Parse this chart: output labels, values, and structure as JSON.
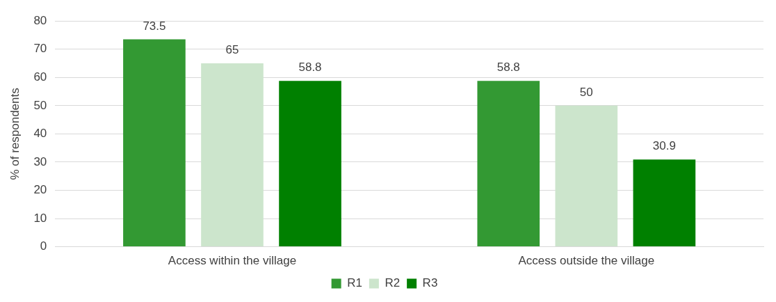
{
  "chart_data": {
    "type": "bar",
    "ylabel": "% of respondents",
    "categories": [
      "Access within the village",
      "Access outside the village"
    ],
    "series": [
      {
        "name": "R1",
        "color": "#339933",
        "values": [
          73.5,
          58.8
        ]
      },
      {
        "name": "R2",
        "color": "#cce5cc",
        "values": [
          65,
          50
        ]
      },
      {
        "name": "R3",
        "color": "#008000",
        "values": [
          58.8,
          30.9
        ]
      }
    ],
    "ylim": [
      0,
      80
    ],
    "yticks": [
      0,
      10,
      20,
      30,
      40,
      50,
      60,
      70,
      80
    ],
    "grid": "y",
    "legend": "bottom",
    "data_labels": true
  }
}
